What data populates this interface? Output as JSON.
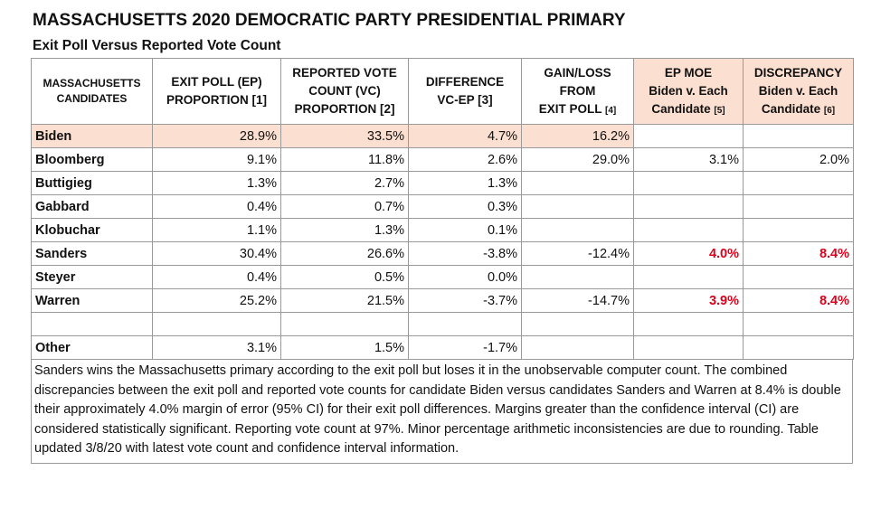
{
  "title": "MASSACHUSETTS 2020 DEMOCRATIC PARTY PRESIDENTIAL PRIMARY",
  "subtitle": "Exit Poll Versus Reported Vote Count",
  "headers": {
    "candidates": [
      "MASSACHUSETTS",
      "CANDIDATES"
    ],
    "ep": [
      "EXIT POLL (EP)",
      "PROPORTION [1]"
    ],
    "vc": [
      "REPORTED VOTE",
      "COUNT (VC)",
      "PROPORTION [2]"
    ],
    "diff": [
      "DIFFERENCE",
      "VC-EP  [3]"
    ],
    "gain": [
      "GAIN/LOSS",
      "FROM",
      "EXIT POLL",
      "[4]"
    ],
    "moe": [
      "EP MOE",
      "Biden v. Each",
      "Candidate",
      "[5]"
    ],
    "disc": [
      "DISCREPANCY",
      "Biden v. Each",
      "Candidate",
      "[6]"
    ]
  },
  "rows": [
    {
      "name": "Biden",
      "ep": "28.9%",
      "vc": "33.5%",
      "diff": "4.7%",
      "gain": "16.2%",
      "moe": "",
      "disc": ""
    },
    {
      "name": "Bloomberg",
      "ep": "9.1%",
      "vc": "11.8%",
      "diff": "2.6%",
      "gain": "29.0%",
      "moe": "3.1%",
      "disc": "2.0%"
    },
    {
      "name": "Buttigieg",
      "ep": "1.3%",
      "vc": "2.7%",
      "diff": "1.3%",
      "gain": "",
      "moe": "",
      "disc": ""
    },
    {
      "name": "Gabbard",
      "ep": "0.4%",
      "vc": "0.7%",
      "diff": "0.3%",
      "gain": "",
      "moe": "",
      "disc": ""
    },
    {
      "name": "Klobuchar",
      "ep": "1.1%",
      "vc": "1.3%",
      "diff": "0.1%",
      "gain": "",
      "moe": "",
      "disc": ""
    },
    {
      "name": "Sanders",
      "ep": "30.4%",
      "vc": "26.6%",
      "diff": "-3.8%",
      "gain": "-12.4%",
      "moe": "4.0%",
      "disc": "8.4%"
    },
    {
      "name": "Steyer",
      "ep": "0.4%",
      "vc": "0.5%",
      "diff": "0.0%",
      "gain": "",
      "moe": "",
      "disc": ""
    },
    {
      "name": "Warren",
      "ep": "25.2%",
      "vc": "21.5%",
      "diff": "-3.7%",
      "gain": "-14.7%",
      "moe": "3.9%",
      "disc": "8.4%"
    },
    {
      "name": "",
      "ep": "",
      "vc": "",
      "diff": "",
      "gain": "",
      "moe": "",
      "disc": ""
    },
    {
      "name": "Other",
      "ep": "3.1%",
      "vc": "1.5%",
      "diff": "-1.7%",
      "gain": "",
      "moe": "",
      "disc": ""
    }
  ],
  "note": "Sanders wins the Massachusetts primary according to the exit poll but loses it in the unobservable computer count. The combined discrepancies between the exit poll and reported vote counts for candidate Biden versus candidates Sanders and Warren at 8.4% is double their approximately 4.0% margin of error (95% CI) for their exit poll differences.  Margins greater than the confidence interval (CI) are considered statistically significant.  Reporting vote count at 97%. Minor percentage arithmetic inconsistencies are due to rounding. Table updated 3/8/20 with latest vote count and confidence interval information.",
  "colors": {
    "highlight": "#fbdfd0",
    "significant": "#e0001b"
  }
}
